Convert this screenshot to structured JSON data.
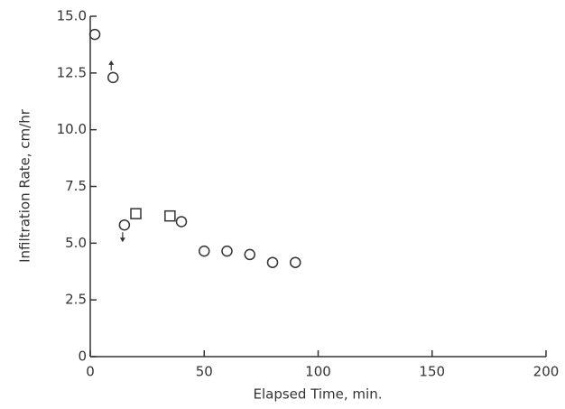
{
  "chart_data": {
    "type": "scatter",
    "x_label": "Elapsed Time, min.",
    "y_label": "Infiltration Rate, cm/hr",
    "xlim": [
      0,
      200
    ],
    "xticks": [
      0,
      50,
      100,
      150,
      200
    ],
    "ylim": [
      0,
      15
    ],
    "yticks": [
      0,
      2.5,
      {
        "value": 5,
        "label": "5.0"
      },
      7.5,
      {
        "value": 10,
        "label": "10.0"
      },
      12.5,
      {
        "value": 15,
        "label": "15.0"
      }
    ],
    "grid": false,
    "series": [
      {
        "marker": "circle",
        "color": "#333333",
        "x": [
          2,
          10,
          15,
          40,
          50,
          60,
          70,
          80,
          90
        ],
        "values": [
          14.2,
          12.3,
          5.8,
          5.95,
          4.65,
          4.65,
          4.5,
          4.15,
          4.15
        ]
      },
      {
        "marker": "square",
        "color": "#333333",
        "x": [
          20,
          35
        ],
        "values": [
          6.3,
          6.2
        ]
      }
    ]
  }
}
